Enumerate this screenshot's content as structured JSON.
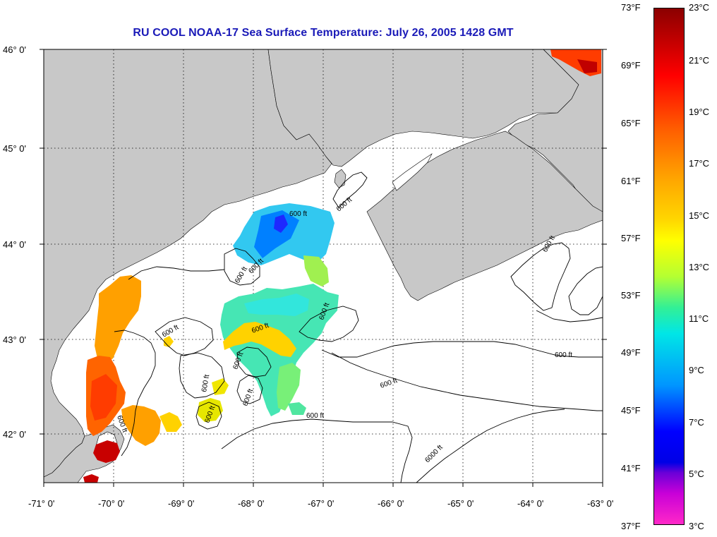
{
  "title": "RU COOL  NOAA-17  Sea Surface Temperature:  July 26, 2005 1428 GMT",
  "axes": {
    "lat_labels": [
      "46° 0'",
      "45° 0'",
      "44° 0'",
      "43° 0'",
      "42° 0'"
    ],
    "lon_labels": [
      "-71° 0'",
      "-70° 0'",
      "-69° 0'",
      "-68° 0'",
      "-67° 0'",
      "-66° 0'",
      "-65° 0'",
      "-64° 0'",
      "-63° 0'"
    ]
  },
  "contours": {
    "labels": [
      "600 ft",
      "600 ft",
      "600 ft",
      "600 ft",
      "600 ft",
      "600 ft",
      "600 ft",
      "600 ft",
      "600 ft",
      "600 ft",
      "600 ft",
      "600 ft",
      "600 ft",
      "600 ft",
      "600 ft",
      "600 ft",
      "6000 ft"
    ]
  },
  "colorbar": {
    "fahrenheit": [
      "73°F",
      "69°F",
      "65°F",
      "61°F",
      "57°F",
      "53°F",
      "49°F",
      "45°F",
      "41°F",
      "37°F"
    ],
    "celsius": [
      "23°C",
      "21°C",
      "19°C",
      "17°C",
      "15°C",
      "13°C",
      "11°C",
      "9°C",
      "7°C",
      "5°C",
      "3°C"
    ]
  },
  "colors": {
    "land": "#c8c8c8",
    "water": "#ffffff",
    "title": "#1a1ab8"
  }
}
